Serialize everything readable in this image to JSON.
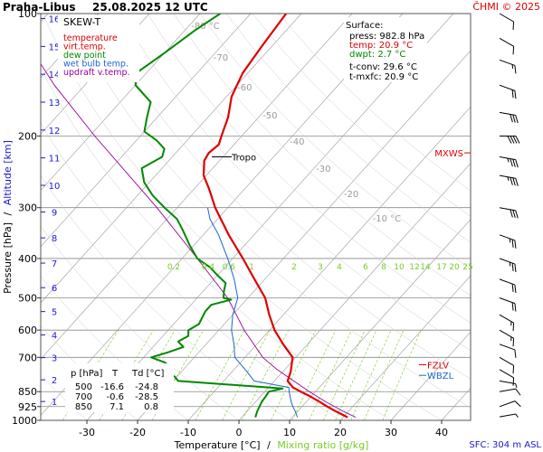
{
  "header": {
    "station": "Praha-Libus",
    "datetime": "25.08.2025 12 UTC",
    "credit": "ČHMI © 2025"
  },
  "legend": {
    "title": "SKEW-T",
    "items": [
      {
        "label": "temperature",
        "color": "#dd0000"
      },
      {
        "label": "virt.temp.",
        "color": "#dd0000"
      },
      {
        "label": "dew point",
        "color": "#008800"
      },
      {
        "label": "wet bulb temp.",
        "color": "#1a66cc"
      },
      {
        "label": "updraft v.temp.",
        "color": "#990099"
      }
    ]
  },
  "surface_info": {
    "title": "Surface:",
    "press": "press: 982.8 hPa",
    "temp": "temp: 20.9 °C",
    "dwpt": "dwpt: 2.7 °C",
    "tconv": "t-conv: 29.6 °C",
    "tmxfc": "t-mxfc: 20.9 °C"
  },
  "level_table": {
    "headers": [
      "p [hPa]",
      "T",
      "Td [°C]"
    ],
    "rows": [
      [
        "500",
        "-16.6",
        "-24.8"
      ],
      [
        "700",
        "-0.6",
        "-28.5"
      ],
      [
        "850",
        "7.1",
        "0.8"
      ]
    ]
  },
  "labels": {
    "tropo": "Tropo",
    "mxws": "MXWS",
    "fzlv": "FZLV",
    "wbzl": "WBZL",
    "sfc": "SFC: 304 m ASL",
    "ylabel_pressure": "Pressure [hPa]",
    "ylabel_sep": "/",
    "ylabel_alt": "Altitude [km]",
    "xlabel_temp": "Temperature [°C]",
    "xlabel_sep": "/",
    "xlabel_mix": "Mixing ratio [g/kg]"
  },
  "colors": {
    "temperature": "#dd0000",
    "dewpoint": "#008800",
    "wetbulb": "#1a66cc",
    "updraft": "#990099",
    "altitude": "#1a1acc",
    "mixing": "#77cc22",
    "isotherm": "#999999",
    "isobar": "#888888",
    "credit": "#dd0000"
  },
  "chart_data": {
    "type": "skew-t",
    "xlim": [
      -35,
      45
    ],
    "ylim": [
      1000,
      100
    ],
    "temperature_ticks": [
      -30,
      -20,
      -10,
      0,
      10,
      20,
      30,
      40
    ],
    "pressure_ticks": [
      100,
      200,
      300,
      400,
      500,
      600,
      700,
      850,
      925,
      1000
    ],
    "altitude_ticks_km": [
      1,
      2,
      3,
      4,
      5,
      6,
      7,
      8,
      9,
      10,
      11,
      12,
      13,
      14,
      15,
      16
    ],
    "isotherm_labels": [
      -80,
      -70,
      -60,
      -50,
      -40,
      -30,
      -20,
      -10
    ],
    "isotherm_label_unit": "°C",
    "mixing_ratio_labels": [
      "0.2",
      "0.4",
      "0.6",
      "1",
      "2",
      "3",
      "4",
      "6",
      "8",
      "10",
      "12",
      "14",
      "17",
      "20",
      "25"
    ],
    "temperature_profile": [
      {
        "p": 982.8,
        "t": 20.9
      },
      {
        "p": 950,
        "t": 17.5
      },
      {
        "p": 925,
        "t": 15.0
      },
      {
        "p": 900,
        "t": 12.6
      },
      {
        "p": 875,
        "t": 10.0
      },
      {
        "p": 850,
        "t": 7.1
      },
      {
        "p": 830,
        "t": 4.8
      },
      {
        "p": 800,
        "t": 2.6
      },
      {
        "p": 760,
        "t": 1.6
      },
      {
        "p": 730,
        "t": 0.5
      },
      {
        "p": 700,
        "t": -0.6
      },
      {
        "p": 650,
        "t": -4.8
      },
      {
        "p": 600,
        "t": -9.0
      },
      {
        "p": 550,
        "t": -12.8
      },
      {
        "p": 500,
        "t": -16.6
      },
      {
        "p": 450,
        "t": -22.0
      },
      {
        "p": 400,
        "t": -28.0
      },
      {
        "p": 350,
        "t": -35.0
      },
      {
        "p": 300,
        "t": -42.5
      },
      {
        "p": 270,
        "t": -47.0
      },
      {
        "p": 250,
        "t": -50.5
      },
      {
        "p": 230,
        "t": -53.0
      },
      {
        "p": 220,
        "t": -53.5
      },
      {
        "p": 210,
        "t": -53.0
      },
      {
        "p": 200,
        "t": -54.0
      },
      {
        "p": 180,
        "t": -56.0
      },
      {
        "p": 160,
        "t": -59.0
      },
      {
        "p": 140,
        "t": -61.0
      },
      {
        "p": 120,
        "t": -62.0
      },
      {
        "p": 100,
        "t": -63.0
      }
    ],
    "dewpoint_profile": [
      {
        "p": 982.8,
        "t": 2.7
      },
      {
        "p": 950,
        "t": 2.0
      },
      {
        "p": 925,
        "t": 1.6
      },
      {
        "p": 900,
        "t": 1.2
      },
      {
        "p": 870,
        "t": 1.0
      },
      {
        "p": 850,
        "t": 0.8
      },
      {
        "p": 835,
        "t": 3.0
      },
      {
        "p": 800,
        "t": -19.0
      },
      {
        "p": 780,
        "t": -20.5
      },
      {
        "p": 760,
        "t": -27.0
      },
      {
        "p": 740,
        "t": -23.0
      },
      {
        "p": 720,
        "t": -25.0
      },
      {
        "p": 700,
        "t": -28.5
      },
      {
        "p": 680,
        "t": -26.0
      },
      {
        "p": 660,
        "t": -24.0
      },
      {
        "p": 640,
        "t": -26.0
      },
      {
        "p": 620,
        "t": -25.0
      },
      {
        "p": 600,
        "t": -26.0
      },
      {
        "p": 580,
        "t": -25.0
      },
      {
        "p": 560,
        "t": -25.5
      },
      {
        "p": 540,
        "t": -26.0
      },
      {
        "p": 520,
        "t": -26.0
      },
      {
        "p": 505,
        "t": -23.0
      },
      {
        "p": 500,
        "t": -24.8
      },
      {
        "p": 480,
        "t": -26.0
      },
      {
        "p": 460,
        "t": -27.0
      },
      {
        "p": 440,
        "t": -30.0
      },
      {
        "p": 420,
        "t": -33.0
      },
      {
        "p": 400,
        "t": -37.0
      },
      {
        "p": 370,
        "t": -41.0
      },
      {
        "p": 340,
        "t": -45.0
      },
      {
        "p": 320,
        "t": -48.0
      },
      {
        "p": 300,
        "t": -52.5
      },
      {
        "p": 280,
        "t": -57.0
      },
      {
        "p": 260,
        "t": -61.0
      },
      {
        "p": 240,
        "t": -64.0
      },
      {
        "p": 225,
        "t": -62.0
      },
      {
        "p": 215,
        "t": -63.0
      },
      {
        "p": 205,
        "t": -66.0
      },
      {
        "p": 195,
        "t": -70.0
      },
      {
        "p": 180,
        "t": -72.0
      },
      {
        "p": 165,
        "t": -74.0
      },
      {
        "p": 150,
        "t": -80.0
      },
      {
        "p": 140,
        "t": -82.0
      },
      {
        "p": 125,
        "t": -80.0
      },
      {
        "p": 110,
        "t": -78.0
      },
      {
        "p": 100,
        "t": -76.0
      }
    ],
    "wetbulb_profile": [
      {
        "p": 982.8,
        "t": 11.0
      },
      {
        "p": 950,
        "t": 9.5
      },
      {
        "p": 925,
        "t": 8.2
      },
      {
        "p": 900,
        "t": 7.0
      },
      {
        "p": 850,
        "t": 4.8
      },
      {
        "p": 830,
        "t": 4.0
      },
      {
        "p": 800,
        "t": -4.0
      },
      {
        "p": 760,
        "t": -7.0
      },
      {
        "p": 700,
        "t": -12.0
      },
      {
        "p": 650,
        "t": -14.5
      },
      {
        "p": 600,
        "t": -17.5
      },
      {
        "p": 550,
        "t": -20.0
      },
      {
        "p": 500,
        "t": -22.0
      },
      {
        "p": 450,
        "t": -26.0
      },
      {
        "p": 400,
        "t": -31.0
      },
      {
        "p": 350,
        "t": -37.0
      },
      {
        "p": 320,
        "t": -41.5
      },
      {
        "p": 300,
        "t": -44.0
      }
    ],
    "updraft_profile": [
      {
        "p": 982.8,
        "t": 22.5
      },
      {
        "p": 950,
        "t": 19.0
      },
      {
        "p": 900,
        "t": 13.8
      },
      {
        "p": 850,
        "t": 8.8
      },
      {
        "p": 800,
        "t": 3.8
      },
      {
        "p": 750,
        "t": -1.5
      },
      {
        "p": 700,
        "t": -6.5
      },
      {
        "p": 600,
        "t": -15.0
      },
      {
        "p": 500,
        "t": -24.0
      },
      {
        "p": 400,
        "t": -37.0
      },
      {
        "p": 300,
        "t": -54.0
      },
      {
        "p": 200,
        "t": -79.0
      },
      {
        "p": 150,
        "t": -96.0
      },
      {
        "p": 120,
        "t": -108.0
      }
    ],
    "wind_barbs": [
      {
        "p": 980,
        "dir": 260,
        "kt": 5
      },
      {
        "p": 925,
        "dir": 250,
        "kt": 10
      },
      {
        "p": 850,
        "dir": 260,
        "kt": 10
      },
      {
        "p": 800,
        "dir": 280,
        "kt": 5
      },
      {
        "p": 750,
        "dir": 300,
        "kt": 10
      },
      {
        "p": 700,
        "dir": 300,
        "kt": 10
      },
      {
        "p": 650,
        "dir": 290,
        "kt": 10
      },
      {
        "p": 600,
        "dir": 300,
        "kt": 15
      },
      {
        "p": 550,
        "dir": 300,
        "kt": 15
      },
      {
        "p": 500,
        "dir": 290,
        "kt": 20
      },
      {
        "p": 450,
        "dir": 290,
        "kt": 20
      },
      {
        "p": 400,
        "dir": 290,
        "kt": 25
      },
      {
        "p": 350,
        "dir": 290,
        "kt": 25
      },
      {
        "p": 300,
        "dir": 280,
        "kt": 30
      },
      {
        "p": 250,
        "dir": 280,
        "kt": 35
      },
      {
        "p": 225,
        "dir": 280,
        "kt": 35
      },
      {
        "p": 200,
        "dir": 270,
        "kt": 40
      },
      {
        "p": 175,
        "dir": 280,
        "kt": 30
      },
      {
        "p": 150,
        "dir": 290,
        "kt": 20
      },
      {
        "p": 130,
        "dir": 290,
        "kt": 15
      },
      {
        "p": 115,
        "dir": 300,
        "kt": 10
      },
      {
        "p": 100,
        "dir": 300,
        "kt": 10
      }
    ],
    "tropopause_p": 225,
    "fzlv_p": 730,
    "wbzl_p": 775,
    "mxws_p": 220
  }
}
